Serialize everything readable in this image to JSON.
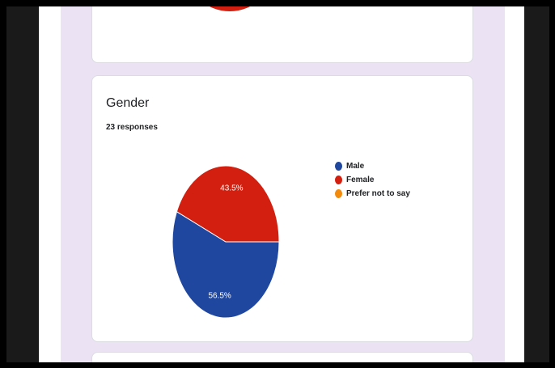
{
  "question": {
    "title": "Gender",
    "responses": "23 responses"
  },
  "chart_data": {
    "type": "pie",
    "categories": [
      "Male",
      "Female",
      "Prefer not to say"
    ],
    "values": [
      56.5,
      43.5,
      0
    ],
    "labels": [
      "56.5%",
      "43.5%",
      ""
    ],
    "colors": [
      "#1f47a0",
      "#d21f0f",
      "#f48a0a"
    ],
    "legend_position": "right"
  },
  "colors": {
    "background": "#ebe3f3",
    "card": "#ffffff"
  }
}
